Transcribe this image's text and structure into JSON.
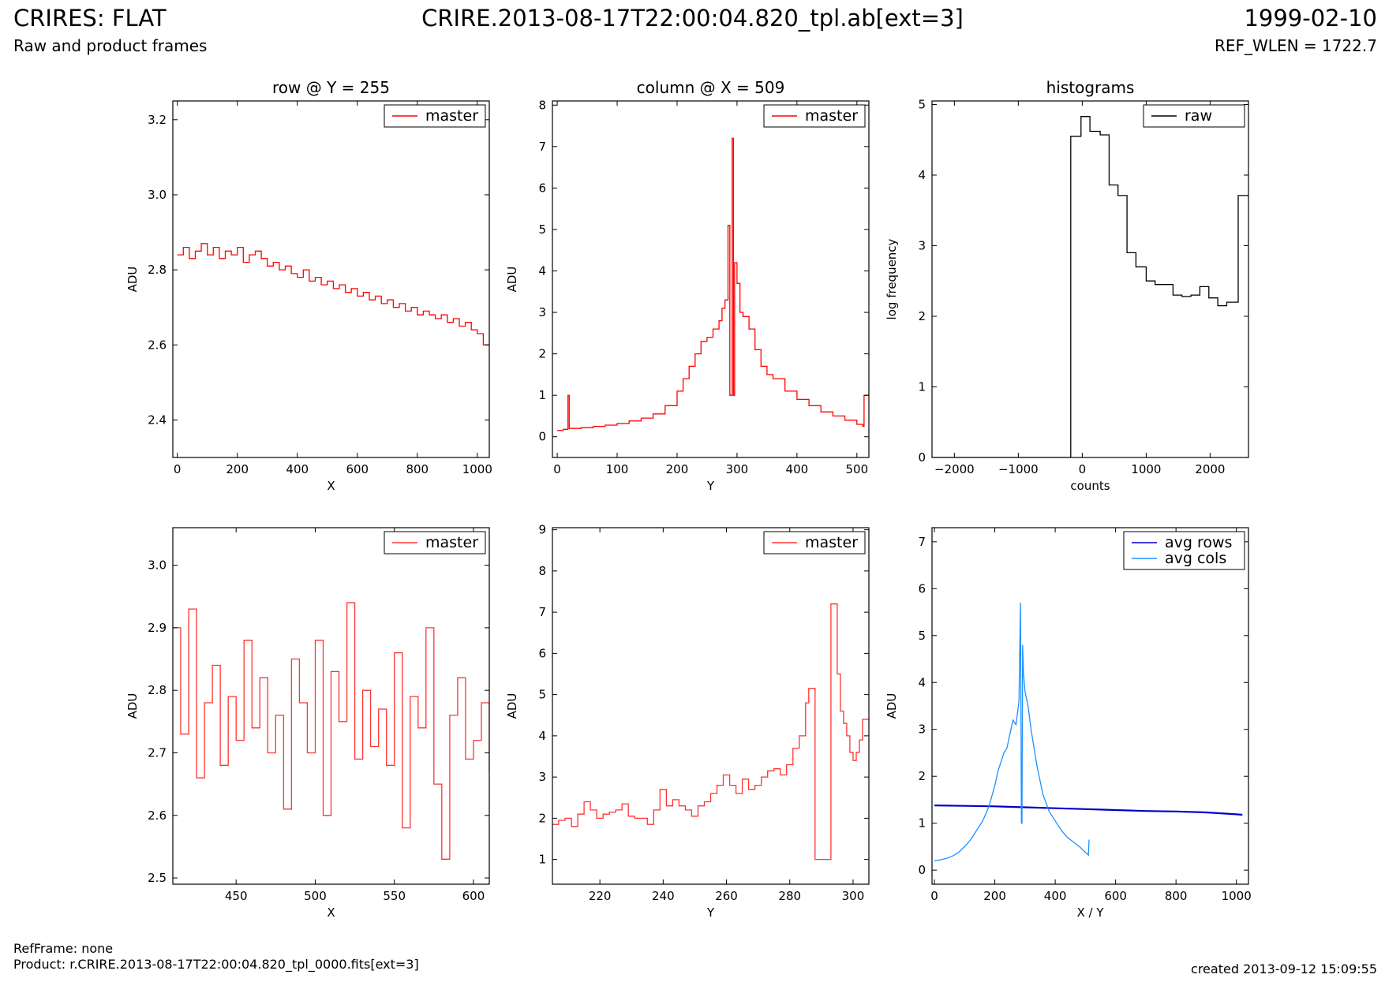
{
  "header": {
    "title": "CRIRES: FLAT",
    "subtitle": "Raw and product frames",
    "file": "CRIRE.2013-08-17T22:00:04.820_tpl.ab[ext=3]",
    "date": "1999-02-10",
    "ref_wlen": "REF_WLEN = 1722.7"
  },
  "footer": {
    "refframe": "RefFrame: none",
    "product": "Product: r.CRIRE.2013-08-17T22:00:04.820_tpl_0000.fits[ext=3]",
    "created": "created 2013-09-12 15:09:55"
  },
  "colors": {
    "master": "#ff0000",
    "master_zoom": "#ff3333",
    "raw": "#000000",
    "avg_rows": "#0000cc",
    "avg_cols": "#1e90ff"
  },
  "chart_data": [
    {
      "type": "line",
      "title": "row @ Y = 255",
      "xlabel": "X",
      "ylabel": "ADU",
      "xlim": [
        -15,
        1040
      ],
      "ylim": [
        2.3,
        3.25
      ],
      "xticks": [
        0,
        200,
        400,
        600,
        800,
        1000
      ],
      "yticks": [
        2.4,
        2.6,
        2.8,
        3.0,
        3.2
      ],
      "yformat": 1,
      "legend": "top-right",
      "drawstyle": "steps",
      "series": [
        {
          "name": "master",
          "color": "#ff0000",
          "x": [
            0,
            20,
            40,
            60,
            80,
            100,
            120,
            140,
            160,
            180,
            200,
            220,
            240,
            260,
            280,
            300,
            320,
            340,
            360,
            380,
            400,
            420,
            440,
            460,
            480,
            500,
            520,
            540,
            560,
            580,
            600,
            620,
            640,
            660,
            680,
            700,
            720,
            740,
            760,
            780,
            800,
            820,
            840,
            860,
            880,
            900,
            920,
            940,
            960,
            980,
            1000,
            1020
          ],
          "y": [
            2.84,
            2.86,
            2.83,
            2.85,
            2.87,
            2.84,
            2.86,
            2.83,
            2.85,
            2.84,
            2.86,
            2.82,
            2.84,
            2.85,
            2.83,
            2.81,
            2.82,
            2.8,
            2.81,
            2.79,
            2.78,
            2.8,
            2.77,
            2.78,
            2.76,
            2.77,
            2.75,
            2.76,
            2.74,
            2.75,
            2.73,
            2.74,
            2.72,
            2.73,
            2.71,
            2.72,
            2.7,
            2.71,
            2.69,
            2.7,
            2.68,
            2.69,
            2.68,
            2.67,
            2.68,
            2.66,
            2.67,
            2.65,
            2.66,
            2.64,
            2.63,
            2.6
          ]
        }
      ]
    },
    {
      "type": "line",
      "title": "column @ X = 509",
      "xlabel": "Y",
      "ylabel": "ADU",
      "xlim": [
        -8,
        520
      ],
      "ylim": [
        -0.5,
        8.1
      ],
      "xticks": [
        0,
        100,
        200,
        300,
        400,
        500
      ],
      "yticks": [
        0,
        1,
        2,
        3,
        4,
        5,
        6,
        7,
        8
      ],
      "yformat": 0,
      "legend": "top-right",
      "drawstyle": "steps",
      "series": [
        {
          "name": "master",
          "color": "#ff0000",
          "x": [
            0,
            10,
            18,
            20,
            22,
            40,
            60,
            80,
            100,
            120,
            140,
            160,
            180,
            200,
            210,
            220,
            230,
            240,
            250,
            260,
            270,
            275,
            280,
            285,
            288,
            290,
            292,
            294,
            296,
            300,
            305,
            310,
            320,
            330,
            340,
            350,
            360,
            380,
            400,
            420,
            440,
            460,
            480,
            500,
            510,
            512
          ],
          "y": [
            0.15,
            0.18,
            1.0,
            0.2,
            0.2,
            0.22,
            0.25,
            0.28,
            0.32,
            0.38,
            0.45,
            0.55,
            0.75,
            1.1,
            1.4,
            1.7,
            2.0,
            2.3,
            2.4,
            2.6,
            2.8,
            3.1,
            3.3,
            5.1,
            1.0,
            1.0,
            7.2,
            1.0,
            4.2,
            3.7,
            3.0,
            2.9,
            2.6,
            2.1,
            1.7,
            1.5,
            1.4,
            1.1,
            0.9,
            0.75,
            0.6,
            0.5,
            0.4,
            0.3,
            0.25,
            1.0
          ]
        }
      ]
    },
    {
      "type": "line",
      "title": "histograms",
      "xlabel": "counts",
      "ylabel": "log frequency",
      "xlim": [
        -2350,
        2600
      ],
      "ylim": [
        0,
        5.05
      ],
      "xticks": [
        -2000,
        -1000,
        0,
        1000,
        2000
      ],
      "yticks": [
        0,
        1,
        2,
        3,
        4,
        5
      ],
      "yformat": 0,
      "legend": "top-right",
      "drawstyle": "steps",
      "series": [
        {
          "name": "raw",
          "color": "#000000",
          "x": [
            -2350,
            -180,
            -20,
            120,
            280,
            420,
            560,
            700,
            840,
            1000,
            1140,
            1280,
            1420,
            1560,
            1700,
            1840,
            1980,
            2120,
            2260,
            2440,
            2600
          ],
          "y": [
            0,
            4.55,
            4.83,
            4.62,
            4.57,
            3.86,
            3.71,
            2.9,
            2.7,
            2.5,
            2.45,
            2.45,
            2.3,
            2.28,
            2.3,
            2.42,
            2.26,
            2.15,
            2.2,
            3.71,
            3.71
          ]
        }
      ]
    },
    {
      "type": "line",
      "title": "",
      "xlabel": "X",
      "ylabel": "ADU",
      "xlim": [
        410,
        610
      ],
      "ylim": [
        2.49,
        3.06
      ],
      "xticks": [
        450,
        500,
        550,
        600
      ],
      "yticks": [
        2.5,
        2.6,
        2.7,
        2.8,
        2.9,
        3.0
      ],
      "yformat": 1,
      "legend": "top-right",
      "drawstyle": "steps",
      "series": [
        {
          "name": "master",
          "color": "#ff3333",
          "x": [
            410,
            415,
            420,
            425,
            430,
            435,
            440,
            445,
            450,
            455,
            460,
            465,
            470,
            475,
            480,
            485,
            490,
            495,
            500,
            505,
            510,
            515,
            520,
            525,
            530,
            535,
            540,
            545,
            550,
            555,
            560,
            565,
            570,
            575,
            580,
            585,
            590,
            595,
            600,
            605,
            610
          ],
          "y": [
            2.9,
            2.73,
            2.93,
            2.66,
            2.78,
            2.84,
            2.68,
            2.79,
            2.72,
            2.88,
            2.74,
            2.82,
            2.7,
            2.76,
            2.61,
            2.85,
            2.78,
            2.7,
            2.88,
            2.6,
            2.83,
            2.75,
            2.94,
            2.69,
            2.8,
            2.71,
            2.77,
            2.68,
            2.86,
            2.58,
            2.79,
            2.74,
            2.9,
            2.65,
            2.53,
            2.76,
            2.82,
            2.69,
            2.72,
            2.78,
            2.67
          ]
        }
      ]
    },
    {
      "type": "line",
      "title": "",
      "xlabel": "Y",
      "ylabel": "ADU",
      "xlim": [
        205,
        305
      ],
      "ylim": [
        0.4,
        9.05
      ],
      "xticks": [
        220,
        240,
        260,
        280,
        300
      ],
      "yticks": [
        1,
        2,
        3,
        4,
        5,
        6,
        7,
        8,
        9
      ],
      "yformat": 0,
      "legend": "top-right",
      "drawstyle": "steps",
      "series": [
        {
          "name": "master",
          "color": "#ff3333",
          "x": [
            205,
            207,
            209,
            211,
            213,
            215,
            217,
            219,
            221,
            223,
            225,
            227,
            229,
            231,
            233,
            235,
            237,
            239,
            241,
            243,
            245,
            247,
            249,
            251,
            253,
            255,
            257,
            259,
            261,
            263,
            265,
            267,
            269,
            271,
            273,
            275,
            277,
            279,
            281,
            283,
            285,
            286,
            288,
            290,
            292,
            293,
            294,
            295,
            296,
            297,
            298,
            299,
            300,
            301,
            302,
            303,
            304
          ],
          "y": [
            1.85,
            1.95,
            2.0,
            1.8,
            2.1,
            2.4,
            2.2,
            2.0,
            2.1,
            2.15,
            2.2,
            2.35,
            2.05,
            2.0,
            2.0,
            1.85,
            2.2,
            2.7,
            2.3,
            2.45,
            2.3,
            2.2,
            2.05,
            2.3,
            2.4,
            2.6,
            2.8,
            3.05,
            2.8,
            2.6,
            2.95,
            2.7,
            2.8,
            3.0,
            3.15,
            3.2,
            3.05,
            3.3,
            3.7,
            4.0,
            4.8,
            5.15,
            1.0,
            1.0,
            1.0,
            7.2,
            7.2,
            5.5,
            4.6,
            4.3,
            4.0,
            3.6,
            3.4,
            3.6,
            3.9,
            4.4,
            4.4
          ]
        }
      ]
    },
    {
      "type": "line",
      "title": "",
      "xlabel": "X / Y",
      "ylabel": "ADU",
      "xlim": [
        -8,
        1040
      ],
      "ylim": [
        -0.3,
        7.3
      ],
      "xticks": [
        0,
        200,
        400,
        600,
        800,
        1000
      ],
      "yticks": [
        0,
        1,
        2,
        3,
        4,
        5,
        6,
        7
      ],
      "yformat": 0,
      "legend": "top-right",
      "drawstyle": "line",
      "series": [
        {
          "name": "avg rows",
          "color": "#0000cc",
          "x": [
            0,
            100,
            200,
            300,
            400,
            500,
            600,
            700,
            800,
            900,
            1000,
            1020
          ],
          "y": [
            1.38,
            1.37,
            1.36,
            1.34,
            1.32,
            1.3,
            1.28,
            1.26,
            1.25,
            1.23,
            1.19,
            1.18
          ]
        },
        {
          "name": "avg cols",
          "color": "#1e90ff",
          "x": [
            0,
            20,
            40,
            60,
            80,
            100,
            120,
            140,
            160,
            180,
            200,
            210,
            220,
            230,
            240,
            250,
            260,
            270,
            280,
            285,
            288,
            290,
            292,
            295,
            300,
            310,
            320,
            330,
            340,
            350,
            360,
            380,
            400,
            420,
            440,
            460,
            480,
            500,
            510,
            512
          ],
          "y": [
            0.2,
            0.22,
            0.25,
            0.3,
            0.38,
            0.5,
            0.65,
            0.85,
            1.05,
            1.35,
            1.8,
            2.1,
            2.3,
            2.5,
            2.6,
            2.9,
            3.2,
            3.1,
            3.6,
            5.7,
            1.0,
            1.0,
            4.8,
            4.2,
            3.8,
            3.5,
            3.0,
            2.6,
            2.2,
            1.9,
            1.6,
            1.25,
            1.05,
            0.85,
            0.7,
            0.6,
            0.5,
            0.38,
            0.32,
            0.65
          ]
        }
      ]
    }
  ]
}
